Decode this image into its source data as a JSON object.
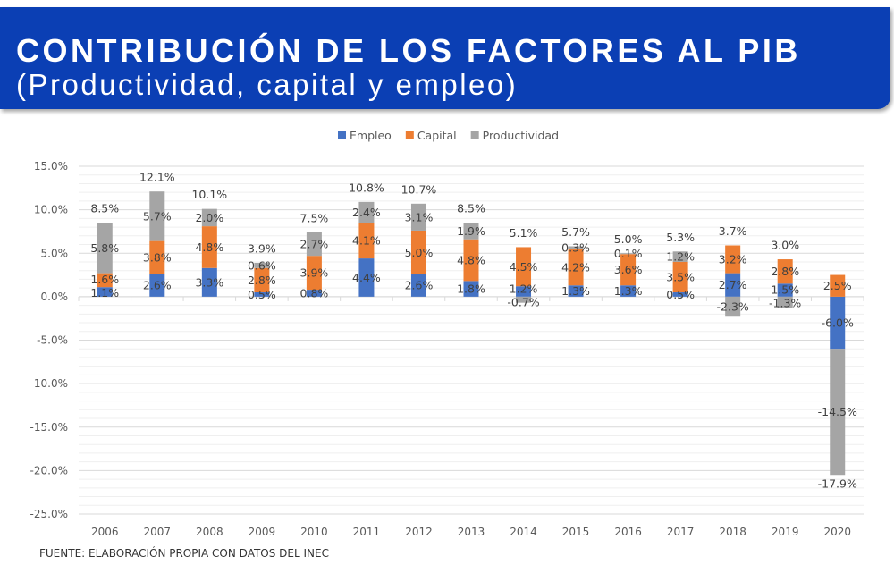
{
  "header": {
    "title": "CONTRIBUCIÓN DE LOS FACTORES AL PIB",
    "subtitle": "(Productividad, capital y empleo)"
  },
  "source": "FUENTE: ELABORACIÓN PROPIA CON DATOS DEL INEC",
  "chart_data": {
    "type": "bar",
    "stacked": true,
    "categories": [
      "2006",
      "2007",
      "2008",
      "2009",
      "2010",
      "2011",
      "2012",
      "2013",
      "2014",
      "2015",
      "2016",
      "2017",
      "2018",
      "2019",
      "2020"
    ],
    "series": [
      {
        "name": "Empleo",
        "color": "#4472c4",
        "values": [
          1.1,
          2.6,
          3.3,
          0.5,
          0.8,
          4.4,
          2.6,
          1.8,
          1.2,
          1.3,
          1.3,
          0.5,
          2.7,
          1.5,
          -6.0
        ]
      },
      {
        "name": "Capital",
        "color": "#ed7d31",
        "values": [
          1.6,
          3.8,
          4.8,
          2.8,
          3.9,
          4.1,
          5.0,
          4.8,
          4.5,
          4.2,
          3.6,
          3.5,
          3.2,
          2.8,
          2.5
        ]
      },
      {
        "name": "Productividad",
        "color": "#a5a5a5",
        "values": [
          5.8,
          5.7,
          2.0,
          0.6,
          2.7,
          2.4,
          3.1,
          1.9,
          -0.7,
          0.3,
          0.1,
          1.2,
          -2.3,
          -1.3,
          -14.5
        ]
      }
    ],
    "totals": [
      8.5,
      12.1,
      10.1,
      3.9,
      7.5,
      10.8,
      10.7,
      8.5,
      5.1,
      5.7,
      5.0,
      5.3,
      3.7,
      3.0,
      -17.9
    ],
    "yticks": [
      "15.0%",
      "10.0%",
      "5.0%",
      "0.0%",
      "-5.0%",
      "-10.0%",
      "-15.0%",
      "-20.0%",
      "-25.0%"
    ],
    "ylim": [
      -25,
      15
    ],
    "grid": true,
    "legend_position": "top"
  }
}
